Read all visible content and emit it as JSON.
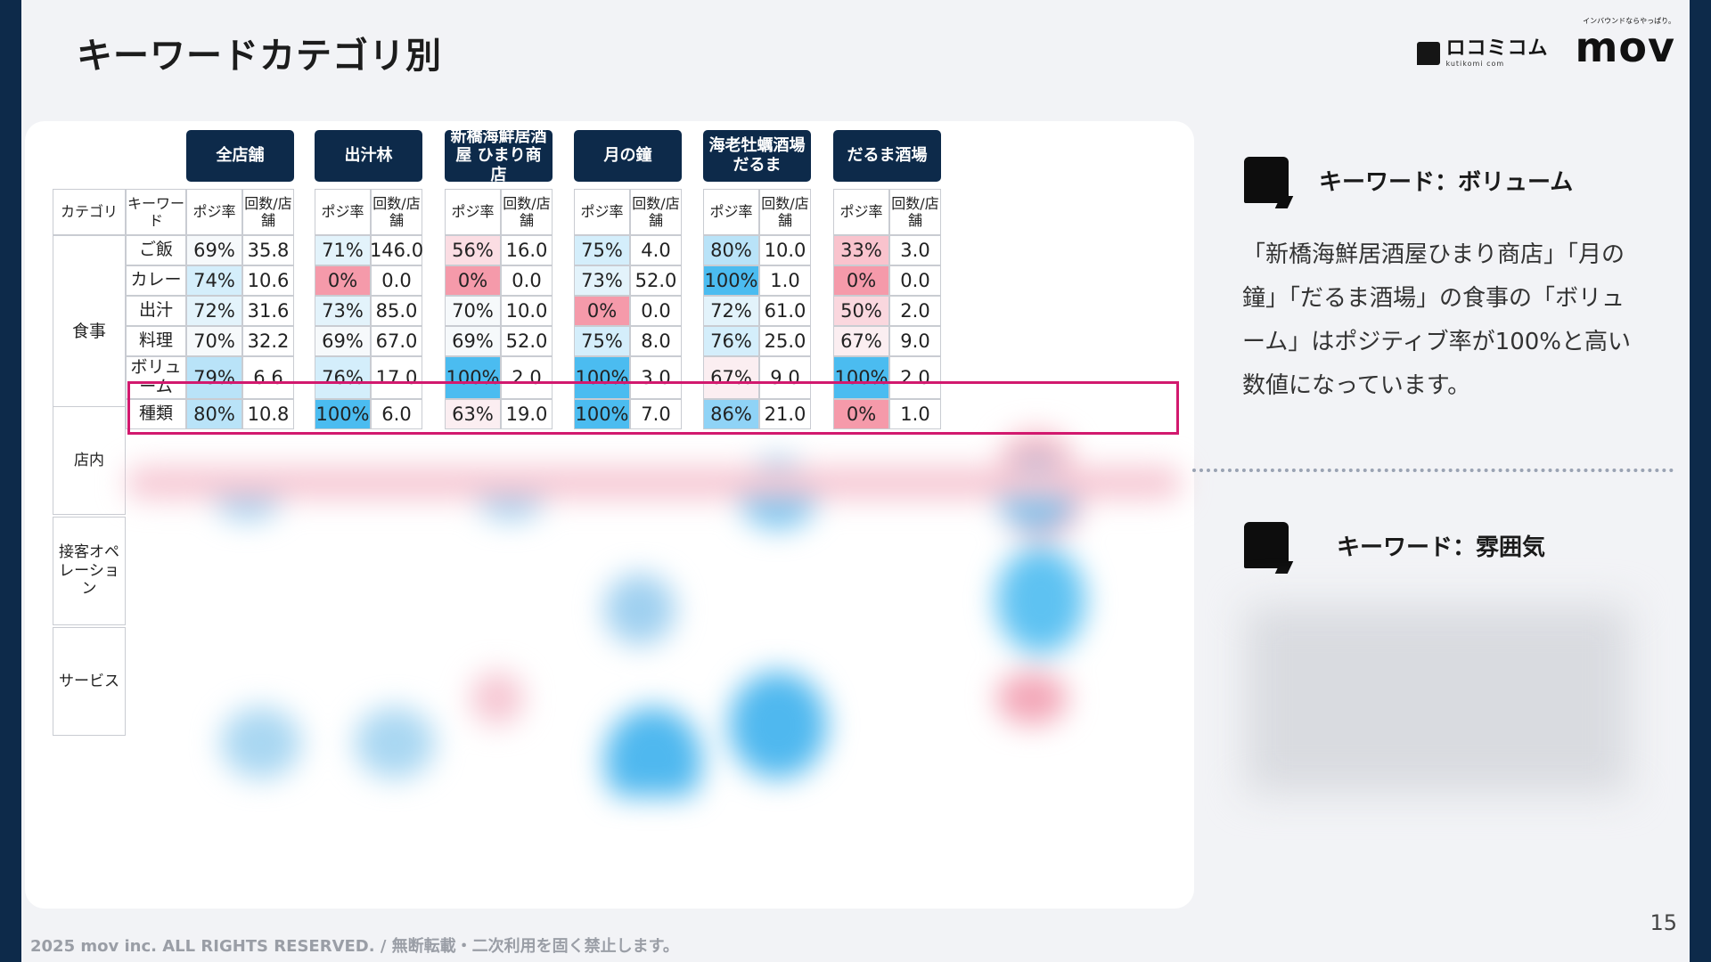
{
  "title": "キーワードカテゴリ別",
  "logos": {
    "kutikomi_jp": "ロコミコム",
    "kutikomi_en": "kutikomi com",
    "mov_tagline": "インバウンドならやっぱり。",
    "mov_word": "mov"
  },
  "table": {
    "category_header": "カテゴリ",
    "keyword_header": "キーワード",
    "rate_label": "ポジ率",
    "count_label": "回数/店舗",
    "stores": [
      "全店舗",
      "出汁林",
      "新橋海鮮居酒屋 ひまり商店",
      "月の鐘",
      "海老牡蠣酒場 だるま",
      "だるま酒場"
    ],
    "food_category": "食事",
    "rows": [
      {
        "keyword": "ご飯",
        "cells": [
          [
            "69%",
            "35.8"
          ],
          [
            "71%",
            "146.0"
          ],
          [
            "56%",
            "16.0"
          ],
          [
            "75%",
            "4.0"
          ],
          [
            "80%",
            "10.0"
          ],
          [
            "33%",
            "3.0"
          ]
        ]
      },
      {
        "keyword": "カレー",
        "cells": [
          [
            "74%",
            "10.6"
          ],
          [
            "0%",
            "0.0"
          ],
          [
            "0%",
            "0.0"
          ],
          [
            "73%",
            "52.0"
          ],
          [
            "100%",
            "1.0"
          ],
          [
            "0%",
            "0.0"
          ]
        ]
      },
      {
        "keyword": "出汁",
        "cells": [
          [
            "72%",
            "31.6"
          ],
          [
            "73%",
            "85.0"
          ],
          [
            "70%",
            "10.0"
          ],
          [
            "0%",
            "0.0"
          ],
          [
            "72%",
            "61.0"
          ],
          [
            "50%",
            "2.0"
          ]
        ]
      },
      {
        "keyword": "料理",
        "cells": [
          [
            "70%",
            "32.2"
          ],
          [
            "69%",
            "67.0"
          ],
          [
            "69%",
            "52.0"
          ],
          [
            "75%",
            "8.0"
          ],
          [
            "76%",
            "25.0"
          ],
          [
            "67%",
            "9.0"
          ]
        ]
      },
      {
        "keyword": "ボリューム",
        "cells": [
          [
            "79%",
            "6.6"
          ],
          [
            "76%",
            "17.0"
          ],
          [
            "100%",
            "2.0"
          ],
          [
            "100%",
            "3.0"
          ],
          [
            "67%",
            "9.0"
          ],
          [
            "100%",
            "2.0"
          ]
        ]
      },
      {
        "keyword": "種類",
        "cells": [
          [
            "80%",
            "10.8"
          ],
          [
            "100%",
            "6.0"
          ],
          [
            "63%",
            "19.0"
          ],
          [
            "100%",
            "7.0"
          ],
          [
            "86%",
            "21.0"
          ],
          [
            "0%",
            "1.0"
          ]
        ]
      }
    ],
    "other_categories": [
      "店内",
      "接客オペレーション",
      "サービス"
    ]
  },
  "right": {
    "kw1_title": "キーワード：ボリューム",
    "kw1_desc": "「新橋海鮮居酒屋ひまり商店」「月の鐘」「だるま酒場」の食事の「ボリューム」はポジティブ率が100%と高い数値になっています。",
    "kw2_title": "キーワード：雰囲気"
  },
  "footer": "2025 mov inc. ALL RIGHTS RESERVED. / 無断転載・二次利用を固く禁止します。",
  "page_number": "15",
  "colors": {
    "navy": "#0d2a4a",
    "highlight": "#d2196e",
    "blue_strong": "#4bbcf0",
    "pink_strong": "#f59aaa"
  }
}
